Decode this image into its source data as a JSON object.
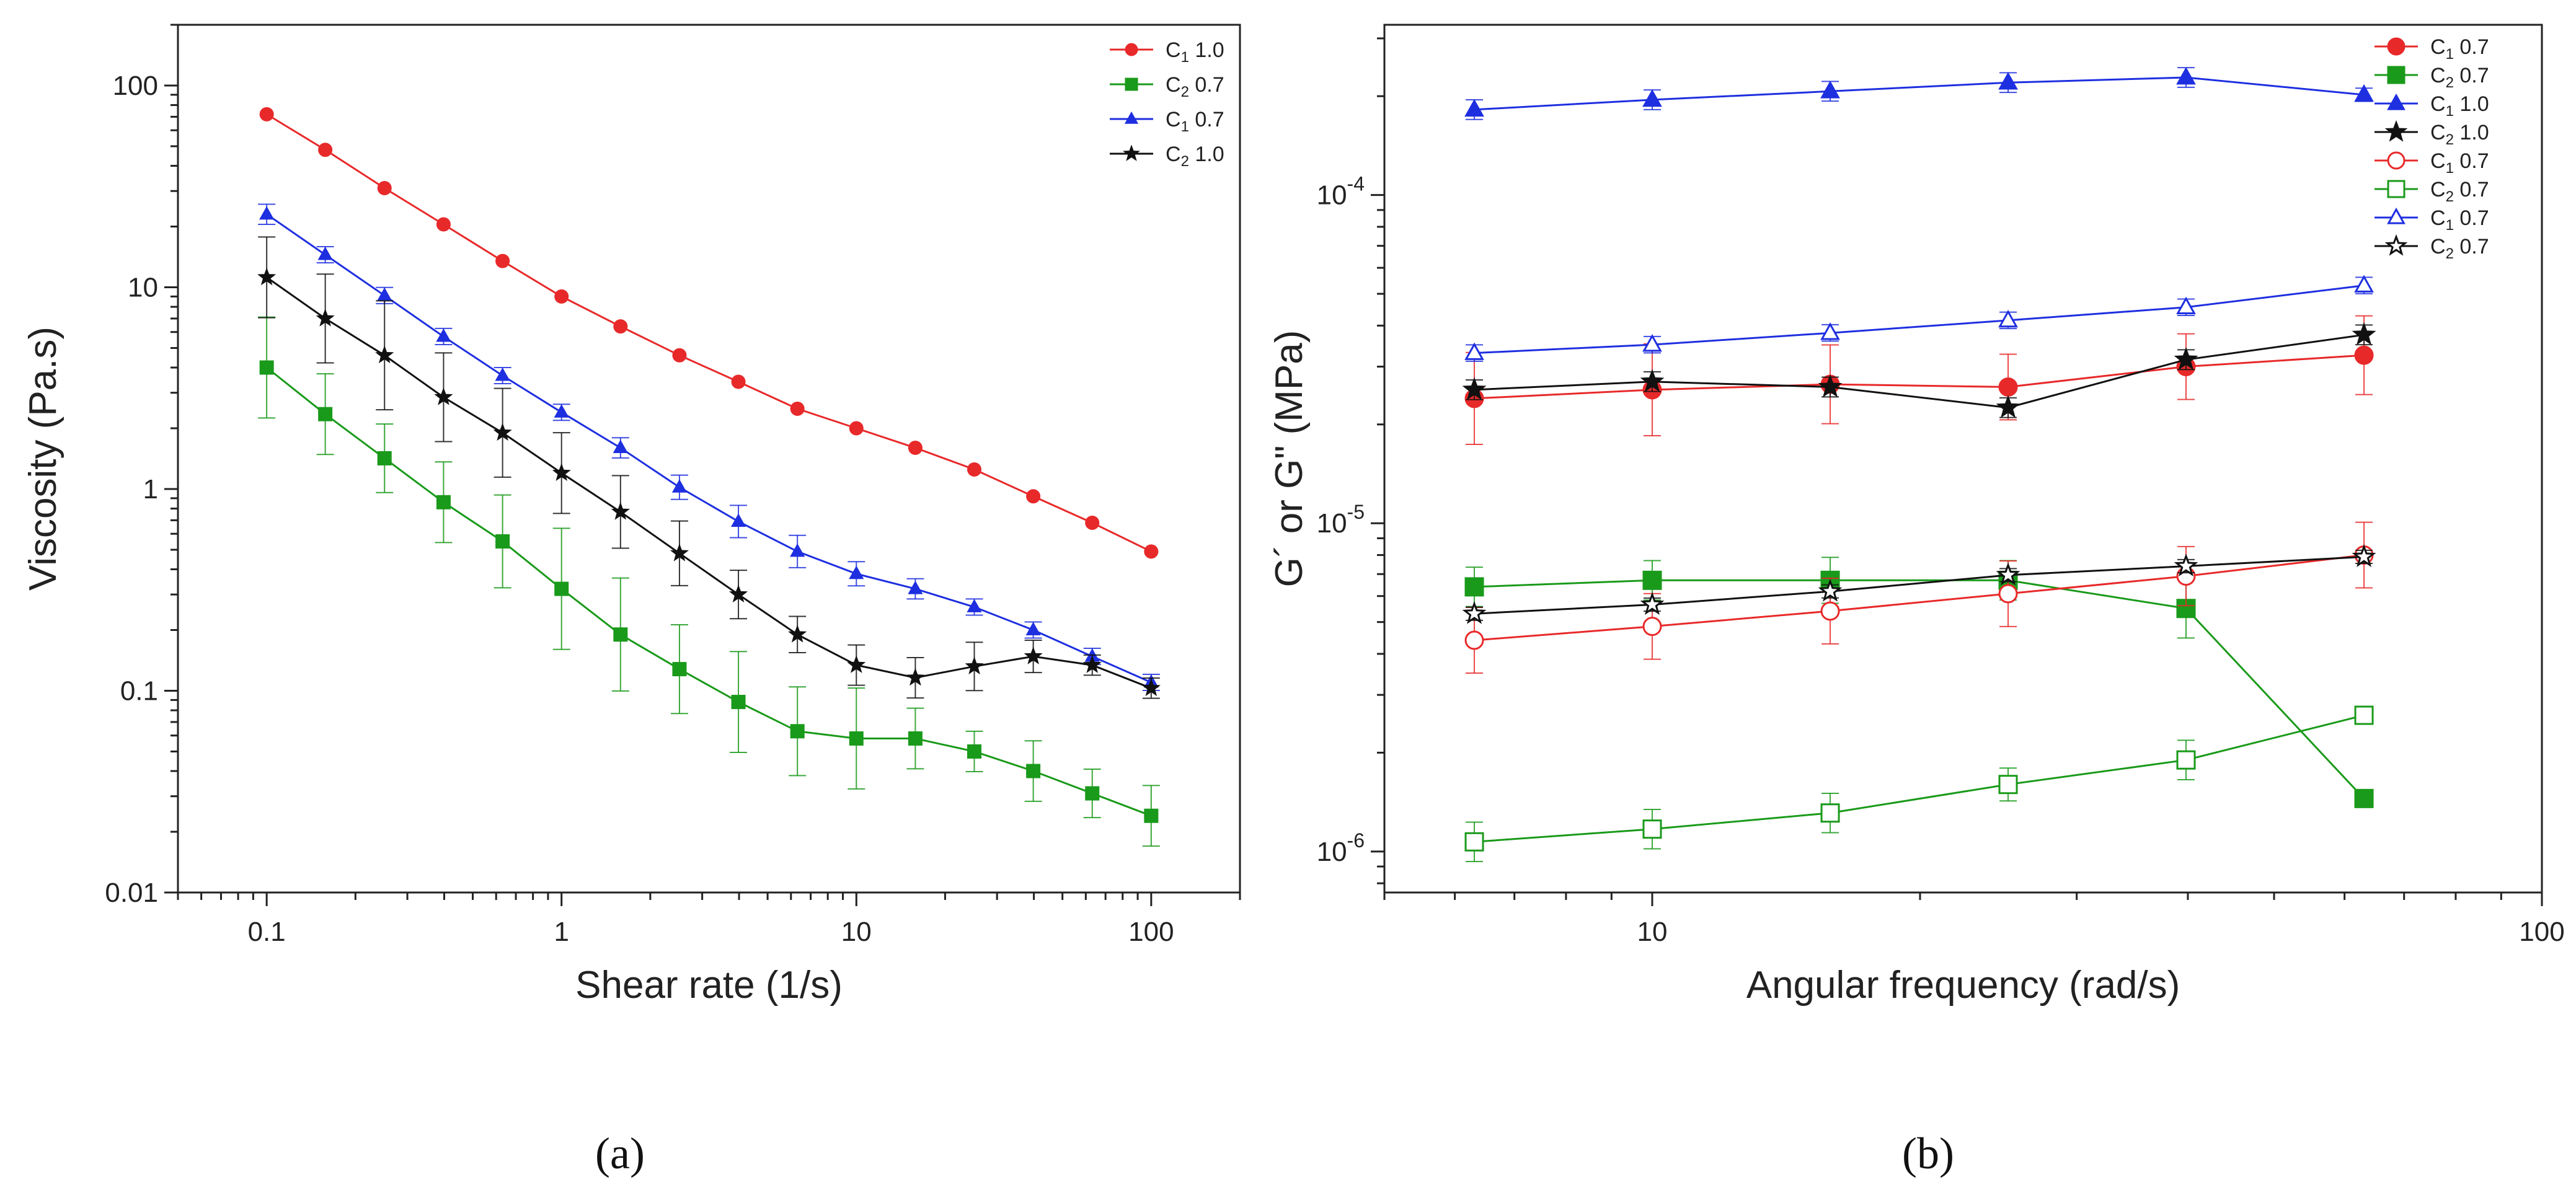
{
  "chart_data": [
    {
      "type": "line",
      "panel_label": "(a)",
      "xlabel": "Shear rate (1/s)",
      "ylabel": "Viscosity (Pa.s)",
      "xscale": "log",
      "yscale": "log",
      "xlim": [
        0.05,
        200
      ],
      "ylim": [
        0.01,
        200
      ],
      "xticks": [
        0.1,
        1,
        10,
        100
      ],
      "xtick_labels": [
        "0.1",
        "1",
        "10",
        "100"
      ],
      "yticks": [
        0.01,
        0.1,
        1,
        10,
        100
      ],
      "ytick_labels": [
        "0.01",
        "0.1",
        "1",
        "10",
        "100"
      ],
      "legend_position": "top-right",
      "x": [
        0.1,
        0.158,
        0.251,
        0.398,
        0.631,
        1,
        1.585,
        2.512,
        3.981,
        6.31,
        10,
        15.85,
        25.12,
        39.81,
        63.1,
        100
      ],
      "series": [
        {
          "name_main": "C",
          "name_sub": "1",
          "name_suffix": " 1.0",
          "color": "#e8292a",
          "marker": "circle",
          "filled": true,
          "values": [
            72,
            48,
            31,
            20.5,
            13.5,
            9,
            6.4,
            4.6,
            3.4,
            2.5,
            2.0,
            1.6,
            1.25,
            0.92,
            0.68,
            0.49
          ],
          "errors": []
        },
        {
          "name_main": "C",
          "name_sub": "2",
          "name_suffix": " 0.7",
          "color": "#1a9a1a",
          "marker": "square",
          "filled": true,
          "values": [
            4.0,
            2.35,
            1.42,
            0.86,
            0.55,
            0.32,
            0.19,
            0.128,
            0.088,
            0.063,
            0.058,
            0.058,
            0.05,
            0.04,
            0.031,
            0.024
          ],
          "errors": [
            0.25,
            0.2,
            0.17,
            0.2,
            0.23,
            0.3,
            0.28,
            0.22,
            0.25,
            0.22,
            0.25,
            0.15,
            0.1,
            0.15,
            0.12,
            0.15
          ]
        },
        {
          "name_main": "C",
          "name_sub": "1",
          "name_suffix": " 0.7",
          "color": "#1e2fe0",
          "marker": "triangle",
          "filled": true,
          "values": [
            23,
            14.5,
            9.1,
            5.7,
            3.65,
            2.4,
            1.6,
            1.02,
            0.69,
            0.49,
            0.38,
            0.32,
            0.26,
            0.2,
            0.148,
            0.11
          ],
          "errors": [
            0.05,
            0.04,
            0.04,
            0.04,
            0.04,
            0.04,
            0.05,
            0.06,
            0.08,
            0.08,
            0.06,
            0.05,
            0.04,
            0.04,
            0.04,
            0.04
          ]
        },
        {
          "name_main": "C",
          "name_sub": "2",
          "name_suffix": " 1.0",
          "color": "#111111",
          "marker": "star",
          "filled": true,
          "values": [
            11.2,
            7.0,
            4.6,
            2.85,
            1.9,
            1.2,
            0.77,
            0.48,
            0.3,
            0.19,
            0.134,
            0.116,
            0.132,
            0.148,
            0.134,
            0.103
          ],
          "errors": [
            0.2,
            0.22,
            0.27,
            0.22,
            0.22,
            0.2,
            0.18,
            0.16,
            0.12,
            0.09,
            0.1,
            0.1,
            0.12,
            0.08,
            0.05,
            0.05
          ]
        }
      ]
    },
    {
      "type": "line",
      "panel_label": "(b)",
      "xlabel": "Angular frequency (rad/s)",
      "ylabel": "G´ or G\" (MPa)",
      "xscale": "log",
      "yscale": "log",
      "xlim": [
        5.0,
        100
      ],
      "ylim": [
        7.5e-07,
        0.00033
      ],
      "xticks": [
        10,
        100
      ],
      "xtick_labels": [
        "10",
        "100"
      ],
      "yticks": [
        1e-06,
        1e-05,
        0.0001
      ],
      "ytick_labels": [
        {
          "base": "10",
          "exp": "-6"
        },
        {
          "base": "10",
          "exp": "-5"
        },
        {
          "base": "10",
          "exp": "-4"
        }
      ],
      "legend_position": "top-right",
      "x": [
        6.31,
        10,
        15.85,
        25.12,
        39.81,
        63.1
      ],
      "series": [
        {
          "name_main": "C",
          "name_sub": "1",
          "name_suffix": " 0.7",
          "color": "#e8292a",
          "marker": "circle",
          "filled": true,
          "values": [
            2.4e-05,
            2.55e-05,
            2.65e-05,
            2.6e-05,
            3e-05,
            3.25e-05
          ],
          "errors": [
            0.14,
            0.14,
            0.12,
            0.1,
            0.1,
            0.12
          ]
        },
        {
          "name_main": "C",
          "name_sub": "2",
          "name_suffix": " 0.7",
          "color": "#1a9a1a",
          "marker": "square",
          "filled": true,
          "values": [
            6.4e-06,
            6.7e-06,
            6.7e-06,
            6.7e-06,
            5.5e-06,
            1.45e-06
          ],
          "errors": [
            0.06,
            0.06,
            0.07,
            0.06,
            0.09,
            0
          ]
        },
        {
          "name_main": "C",
          "name_sub": "1",
          "name_suffix": " 1.0",
          "color": "#1e2fe0",
          "marker": "triangle",
          "filled": true,
          "values": [
            0.000182,
            0.000195,
            0.000207,
            0.00022,
            0.000228,
            0.000202
          ],
          "errors": [
            0.03,
            0.03,
            0.03,
            0.03,
            0.03,
            0.02
          ]
        },
        {
          "name_main": "C",
          "name_sub": "2",
          "name_suffix": " 1.0",
          "color": "#111111",
          "marker": "star",
          "filled": true,
          "values": [
            2.55e-05,
            2.7e-05,
            2.6e-05,
            2.25e-05,
            3.15e-05,
            3.75e-05
          ],
          "errors": [
            0.03,
            0.03,
            0.03,
            0.03,
            0.03,
            0.03
          ]
        },
        {
          "name_main": "C",
          "name_sub": "1",
          "name_suffix": " 0.7",
          "color": "#e8292a",
          "marker": "circle",
          "filled": false,
          "values": [
            4.4e-06,
            4.85e-06,
            5.4e-06,
            6.1e-06,
            6.9e-06,
            8e-06
          ],
          "errors": [
            0.1,
            0.1,
            0.1,
            0.1,
            0.09,
            0.1
          ]
        },
        {
          "name_main": "C",
          "name_sub": "2",
          "name_suffix": " 0.7",
          "color": "#1a9a1a",
          "marker": "square",
          "filled": false,
          "values": [
            1.07e-06,
            1.17e-06,
            1.31e-06,
            1.6e-06,
            1.9e-06,
            2.6e-06
          ],
          "errors": [
            0.06,
            0.06,
            0.06,
            0.05,
            0.06,
            0.01
          ]
        },
        {
          "name_main": "C",
          "name_sub": "1",
          "name_suffix": " 0.7",
          "color": "#1e2fe0",
          "marker": "triangle",
          "filled": false,
          "values": [
            3.3e-05,
            3.5e-05,
            3.8e-05,
            4.15e-05,
            4.55e-05,
            5.3e-05
          ],
          "errors": [
            0.025,
            0.025,
            0.025,
            0.025,
            0.025,
            0.025
          ]
        },
        {
          "name_main": "C",
          "name_sub": "2",
          "name_suffix": " 0.7",
          "color": "#111111",
          "marker": "star",
          "filled": false,
          "values": [
            5.3e-06,
            5.65e-06,
            6.2e-06,
            6.95e-06,
            7.4e-06,
            7.9e-06
          ],
          "errors": [
            0.02,
            0.02,
            0.02,
            0.02,
            0.02,
            0.02
          ]
        }
      ]
    }
  ]
}
